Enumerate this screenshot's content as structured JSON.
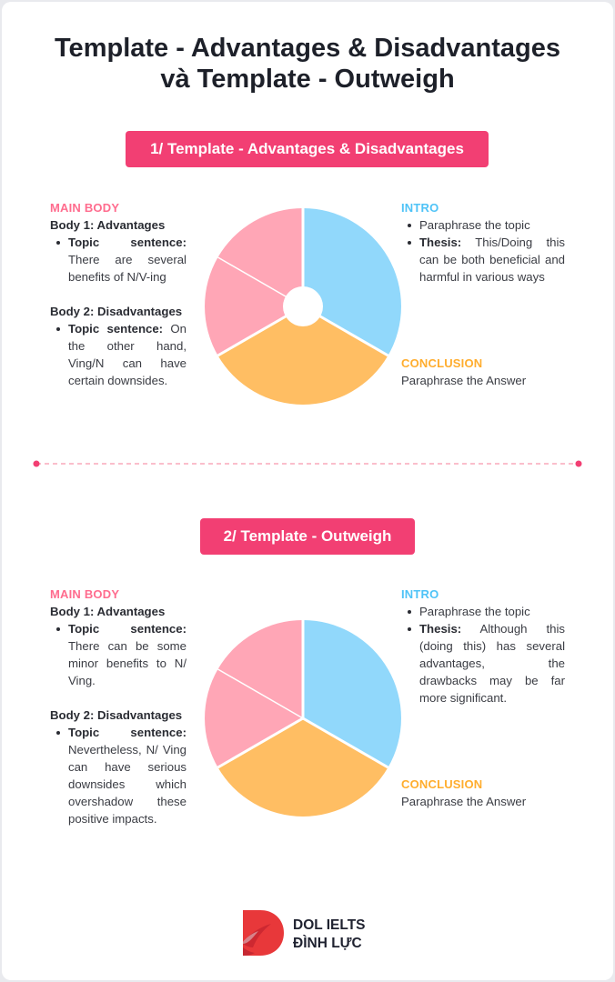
{
  "title": {
    "line1": "Template - Advantages & Disadvantages",
    "line2": "và Template - Outweigh"
  },
  "sections": [
    {
      "pill": "1/ Template - Advantages & Disadvantages",
      "main_body": {
        "heading": "MAIN BODY",
        "body1_title": "Body 1: Advantages",
        "body1_bold": "Topic sentence:",
        "body1_text": "There are several benefits of N/V-ing",
        "body2_title": "Body 2: Disadvantages",
        "body2_bold": "Topic sentence:",
        "body2_text": "On the other hand, Ving/N can have certain downsides."
      },
      "intro": {
        "heading": "INTRO",
        "item1": "Paraphrase the topic",
        "item2_bold": "Thesis:",
        "item2_text": "This/Doing this can be both beneficial and harmful in various ways"
      },
      "conclusion": {
        "heading": "CONCLUSION",
        "text": "Paraphrase the Answer"
      }
    },
    {
      "pill": "2/ Template - Outweigh",
      "main_body": {
        "heading": "MAIN BODY",
        "body1_title": "Body 1: Advantages",
        "body1_bold": "Topic sentence:",
        "body1_text": "There can be some minor benefits to N/ Ving.",
        "body2_title": "Body 2: Disadvantages",
        "body2_bold": "Topic sentence:",
        "body2_text": "Nevertheless, N/ Ving can have serious downsides which overshadow these positive impacts."
      },
      "intro": {
        "heading": "INTRO",
        "item1": "Paraphrase the topic",
        "item2_bold": "Thesis:",
        "item2_text": "Although this (doing this) has several advantages, the drawbacks may be far more significant."
      },
      "conclusion": {
        "heading": "CONCLUSION",
        "text": "Paraphrase the Answer"
      }
    }
  ],
  "logo": {
    "line1": "DOL IELTS",
    "line2": "ĐÌNH LỰC"
  },
  "colors": {
    "accent": "#f23f73",
    "pink": "#ffa6b6",
    "blue": "#91d8fb",
    "orange": "#ffbe63"
  }
}
